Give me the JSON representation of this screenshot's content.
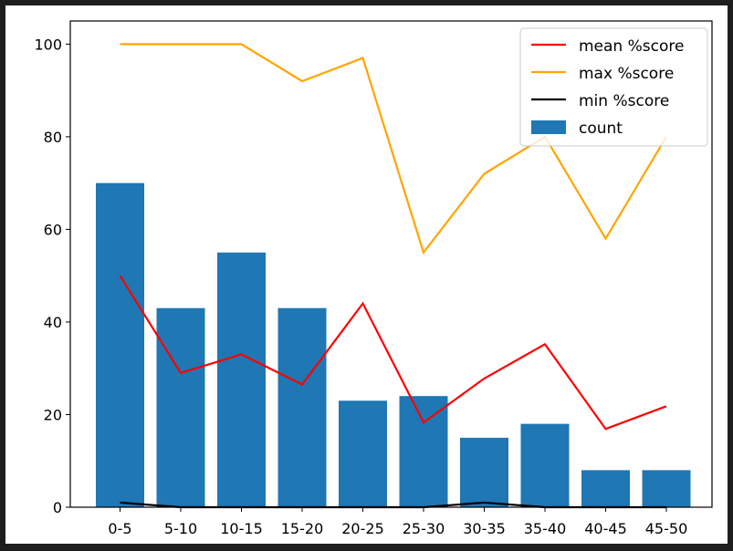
{
  "chart_data": {
    "type": "bar",
    "categories": [
      "0-5",
      "5-10",
      "10-15",
      "15-20",
      "20-25",
      "25-30",
      "30-35",
      "35-40",
      "40-45",
      "45-50"
    ],
    "bars": {
      "name": "count",
      "values": [
        70,
        43,
        55,
        43,
        23,
        24,
        15,
        18,
        8,
        8
      ],
      "color": "#1f77b4"
    },
    "lines": [
      {
        "name": "mean %score",
        "color": "#ff0000",
        "values": [
          50,
          29,
          33,
          26.5,
          44,
          18.3,
          27.8,
          35.2,
          16.9,
          21.8
        ]
      },
      {
        "name": "max %score",
        "color": "#ffa500",
        "values": [
          100,
          100,
          100,
          92,
          97,
          55,
          72,
          80,
          58,
          80
        ]
      },
      {
        "name": "min %score",
        "color": "#000000",
        "values": [
          1,
          0,
          0,
          0,
          0,
          0,
          1,
          0,
          0,
          0
        ]
      }
    ],
    "ylim": [
      0,
      105
    ],
    "yticks": [
      0,
      20,
      40,
      60,
      80,
      100
    ],
    "legend_position": "top-right",
    "title": "",
    "xlabel": "",
    "ylabel": ""
  }
}
